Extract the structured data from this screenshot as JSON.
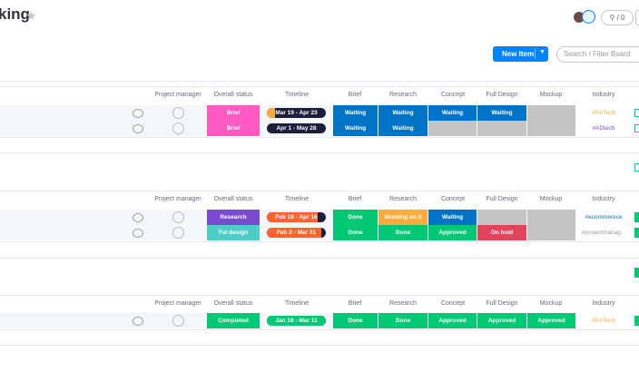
{
  "board": {
    "title": "king",
    "activity_label": "/ 0",
    "new_item_label": "New Item",
    "search_placeholder": "Search / Filter Board"
  },
  "columns": [
    "Project manager",
    "Overall status",
    "Timeline",
    "Brief",
    "Research",
    "Concept",
    "Full Design",
    "Mockup",
    "Industry"
  ],
  "colors": {
    "pink": "#ff5ac4",
    "purple": "#784bd1",
    "teal": "#4eccc6",
    "green": "#00c875",
    "blue": "#0073c6",
    "orange": "#fdab3d",
    "red": "#e2445c",
    "gray": "#c4c4c4",
    "navy": "#1c1f3b"
  },
  "groups": [
    {
      "rows": [
        {
          "status": {
            "text": "Brief",
            "color": "pink"
          },
          "timeline": {
            "text": "Mar 19 - Apr 23",
            "progress": 0.14,
            "color": "#fdab3d"
          },
          "stages": [
            {
              "text": "Waiting",
              "color": "blue"
            },
            {
              "text": "Waiting",
              "color": "blue"
            },
            {
              "text": "Waiting",
              "color": "blue"
            },
            {
              "text": "Waiting",
              "color": "blue"
            },
            {
              "text": "",
              "color": "gray"
            }
          ],
          "industry": {
            "text": "#FinTech",
            "color": "#fdab3d"
          }
        },
        {
          "status": {
            "text": "Brief",
            "color": "pink"
          },
          "timeline": {
            "text": "Apr 1 - May 28",
            "progress": 0,
            "color": "#fdab3d"
          },
          "stages": [
            {
              "text": "Waiting",
              "color": "blue"
            },
            {
              "text": "Waiting",
              "color": "blue"
            },
            {
              "text": "",
              "color": "gray"
            },
            {
              "text": "",
              "color": "gray"
            },
            {
              "text": "",
              "color": "gray"
            }
          ],
          "industry": {
            "text": "#ADtech",
            "color": "#784bd1"
          }
        }
      ]
    },
    {
      "rows": [
        {
          "status": {
            "text": "Research",
            "color": "purple"
          },
          "timeline": {
            "text": "Feb 18 - Apr 16",
            "progress": 0.86,
            "color": "#ff642e"
          },
          "stages": [
            {
              "text": "Done",
              "color": "green"
            },
            {
              "text": "Working on it",
              "color": "orange"
            },
            {
              "text": "Waiting",
              "color": "blue"
            },
            {
              "text": "",
              "color": "gray"
            },
            {
              "text": "",
              "color": "gray"
            }
          ],
          "industry": {
            "text": "#ecommerece",
            "color": "#0073c6"
          }
        },
        {
          "status": {
            "text": "Ful design",
            "color": "teal"
          },
          "timeline": {
            "text": "Feb 2 - Mar 31",
            "progress": 0.93,
            "color": "#ff642e"
          },
          "stages": [
            {
              "text": "Done",
              "color": "green"
            },
            {
              "text": "Done",
              "color": "green"
            },
            {
              "text": "Approved",
              "color": "green"
            },
            {
              "text": "On hold",
              "color": "red"
            },
            {
              "text": "",
              "color": "gray"
            }
          ],
          "industry": {
            "text": "#projectmanag...",
            "color": "#9699a6"
          }
        }
      ]
    },
    {
      "rows": [
        {
          "status": {
            "text": "Completed",
            "color": "green"
          },
          "timeline": {
            "text": "Jan 16 - Mar 11",
            "progress": 1,
            "color": "#00c875"
          },
          "stages": [
            {
              "text": "Done",
              "color": "green"
            },
            {
              "text": "Done",
              "color": "green"
            },
            {
              "text": "Approved",
              "color": "green"
            },
            {
              "text": "Approved",
              "color": "green"
            },
            {
              "text": "Approved",
              "color": "green"
            }
          ],
          "industry": {
            "text": "#FinTech",
            "color": "#fdab3d"
          }
        }
      ]
    }
  ]
}
